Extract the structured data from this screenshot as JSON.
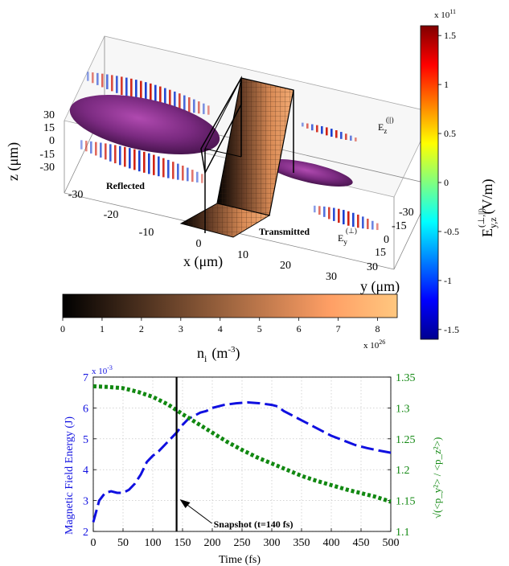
{
  "chart_data": [
    {
      "type": "3d-field-visualization",
      "axes": {
        "x": {
          "label": "x (μm)",
          "ticks": [
            "-30",
            "-20",
            "-10",
            "0",
            "10",
            "20",
            "30"
          ]
        },
        "y": {
          "label": "y (μm)",
          "ticks": [
            "-30",
            "-15",
            "0",
            "15",
            "30"
          ]
        },
        "z": {
          "label": "z (μm)",
          "ticks": [
            "30",
            "15",
            "0",
            "-15",
            "-30"
          ]
        }
      },
      "annotations": {
        "reflected": "Reflected",
        "transmitted": "Transmitted",
        "ez": "E",
        "ez_sub": "z",
        "ez_sup": "(||)",
        "ey": "E",
        "ey_sub": "y",
        "ey_sup": "(⊥)"
      },
      "colorbars": [
        {
          "name": "field",
          "label_main": "E",
          "label_sub": "y,z",
          "label_sup": "(⊥,||)",
          "label_unit": "(V/m)",
          "exponent": "x 10",
          "exponent_power": "11",
          "ticks": [
            "1.5",
            "1",
            "0.5",
            "0",
            "-0.5",
            "-1",
            "-1.5"
          ],
          "range": [
            -1.6,
            1.6
          ],
          "colormap": "jet"
        },
        {
          "name": "density",
          "label_main": "n",
          "label_sub": "i",
          "label_unit": "(m",
          "label_unit_sup": "-3",
          "label_unit_close": ")",
          "exponent": "x 10",
          "exponent_power": "26",
          "ticks": [
            "0",
            "1",
            "2",
            "3",
            "4",
            "5",
            "6",
            "7",
            "8"
          ],
          "range": [
            0,
            8.5
          ],
          "colormap": "copper"
        }
      ]
    },
    {
      "type": "line",
      "xlabel": "Time (fs)",
      "xlim": [
        0,
        500
      ],
      "xticks": [
        "0",
        "50",
        "100",
        "150",
        "200",
        "250",
        "300",
        "350",
        "400",
        "450",
        "500"
      ],
      "ylabel_left": "Magnetic Field Energy (J)",
      "ylim_left": [
        2,
        7
      ],
      "yticks_left": [
        "2",
        "3",
        "4",
        "5",
        "6",
        "7"
      ],
      "left_exponent": "x 10",
      "left_exponent_power": "-3",
      "ylabel_right": "√(<p_y²> / <p_z²>)",
      "ylim_right": [
        1.1,
        1.35
      ],
      "yticks_right": [
        "1.1",
        "1.15",
        "1.2",
        "1.25",
        "1.3",
        "1.35"
      ],
      "grid": true,
      "snapshot_x": 140,
      "annotation": "Snapshot (t=140 fs)",
      "series": [
        {
          "axis": "left",
          "color": "#1010e0",
          "style": "dashed",
          "x": [
            0,
            10,
            20,
            30,
            40,
            50,
            60,
            70,
            80,
            90,
            100,
            110,
            120,
            130,
            140,
            150,
            160,
            170,
            180,
            190,
            200,
            220,
            240,
            260,
            280,
            300,
            310,
            320,
            340,
            360,
            380,
            400,
            420,
            440,
            460,
            480,
            500
          ],
          "values": [
            2.3,
            3.0,
            3.25,
            3.3,
            3.25,
            3.25,
            3.35,
            3.55,
            3.85,
            4.25,
            4.45,
            4.6,
            4.8,
            5.0,
            5.2,
            5.45,
            5.65,
            5.75,
            5.85,
            5.9,
            6.0,
            6.1,
            6.15,
            6.18,
            6.15,
            6.1,
            6.05,
            5.9,
            5.7,
            5.5,
            5.3,
            5.1,
            4.95,
            4.8,
            4.7,
            4.62,
            4.55
          ]
        },
        {
          "axis": "right",
          "color": "#118811",
          "style": "dotted",
          "x": [
            0,
            25,
            50,
            75,
            100,
            125,
            150,
            175,
            200,
            225,
            250,
            275,
            300,
            325,
            350,
            375,
            400,
            425,
            450,
            475,
            500
          ],
          "values": [
            1.335,
            1.334,
            1.332,
            1.326,
            1.318,
            1.306,
            1.29,
            1.275,
            1.26,
            1.245,
            1.232,
            1.22,
            1.21,
            1.2,
            1.19,
            1.182,
            1.175,
            1.168,
            1.162,
            1.156,
            1.148
          ]
        }
      ]
    }
  ]
}
